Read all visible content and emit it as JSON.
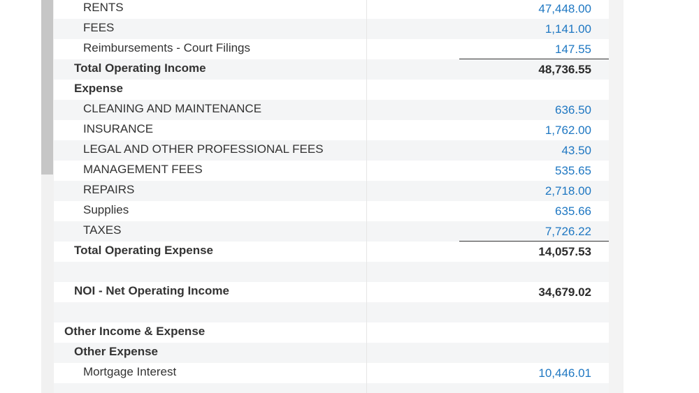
{
  "report": {
    "rows": [
      {
        "label": "RENTS",
        "amount": "47,448.00"
      },
      {
        "label": "FEES",
        "amount": "1,141.00"
      },
      {
        "label": "Reimbursements - Court Filings",
        "amount": "147.55"
      },
      {
        "label": "Total Operating Income",
        "amount": "48,736.55"
      },
      {
        "label": "Expense",
        "amount": ""
      },
      {
        "label": "CLEANING AND MAINTENANCE",
        "amount": "636.50"
      },
      {
        "label": "INSURANCE",
        "amount": "1,762.00"
      },
      {
        "label": "LEGAL AND OTHER PROFESSIONAL FEES",
        "amount": "43.50"
      },
      {
        "label": "MANAGEMENT FEES",
        "amount": "535.65"
      },
      {
        "label": "REPAIRS",
        "amount": "2,718.00"
      },
      {
        "label": "Supplies",
        "amount": "635.66"
      },
      {
        "label": "TAXES",
        "amount": "7,726.22"
      },
      {
        "label": "Total Operating Expense",
        "amount": "14,057.53"
      },
      {
        "label": "",
        "amount": ""
      },
      {
        "label": "NOI - Net Operating Income",
        "amount": "34,679.02"
      },
      {
        "label": "",
        "amount": ""
      },
      {
        "label": "Other Income & Expense",
        "amount": ""
      },
      {
        "label": "Other Expense",
        "amount": ""
      },
      {
        "label": "Mortgage Interest",
        "amount": "10,446.01"
      }
    ]
  },
  "colors": {
    "link_amount": "#1e77c2",
    "total_amount": "#2b2b2b",
    "text": "#333333",
    "alt_row": "#f4f5f6"
  }
}
